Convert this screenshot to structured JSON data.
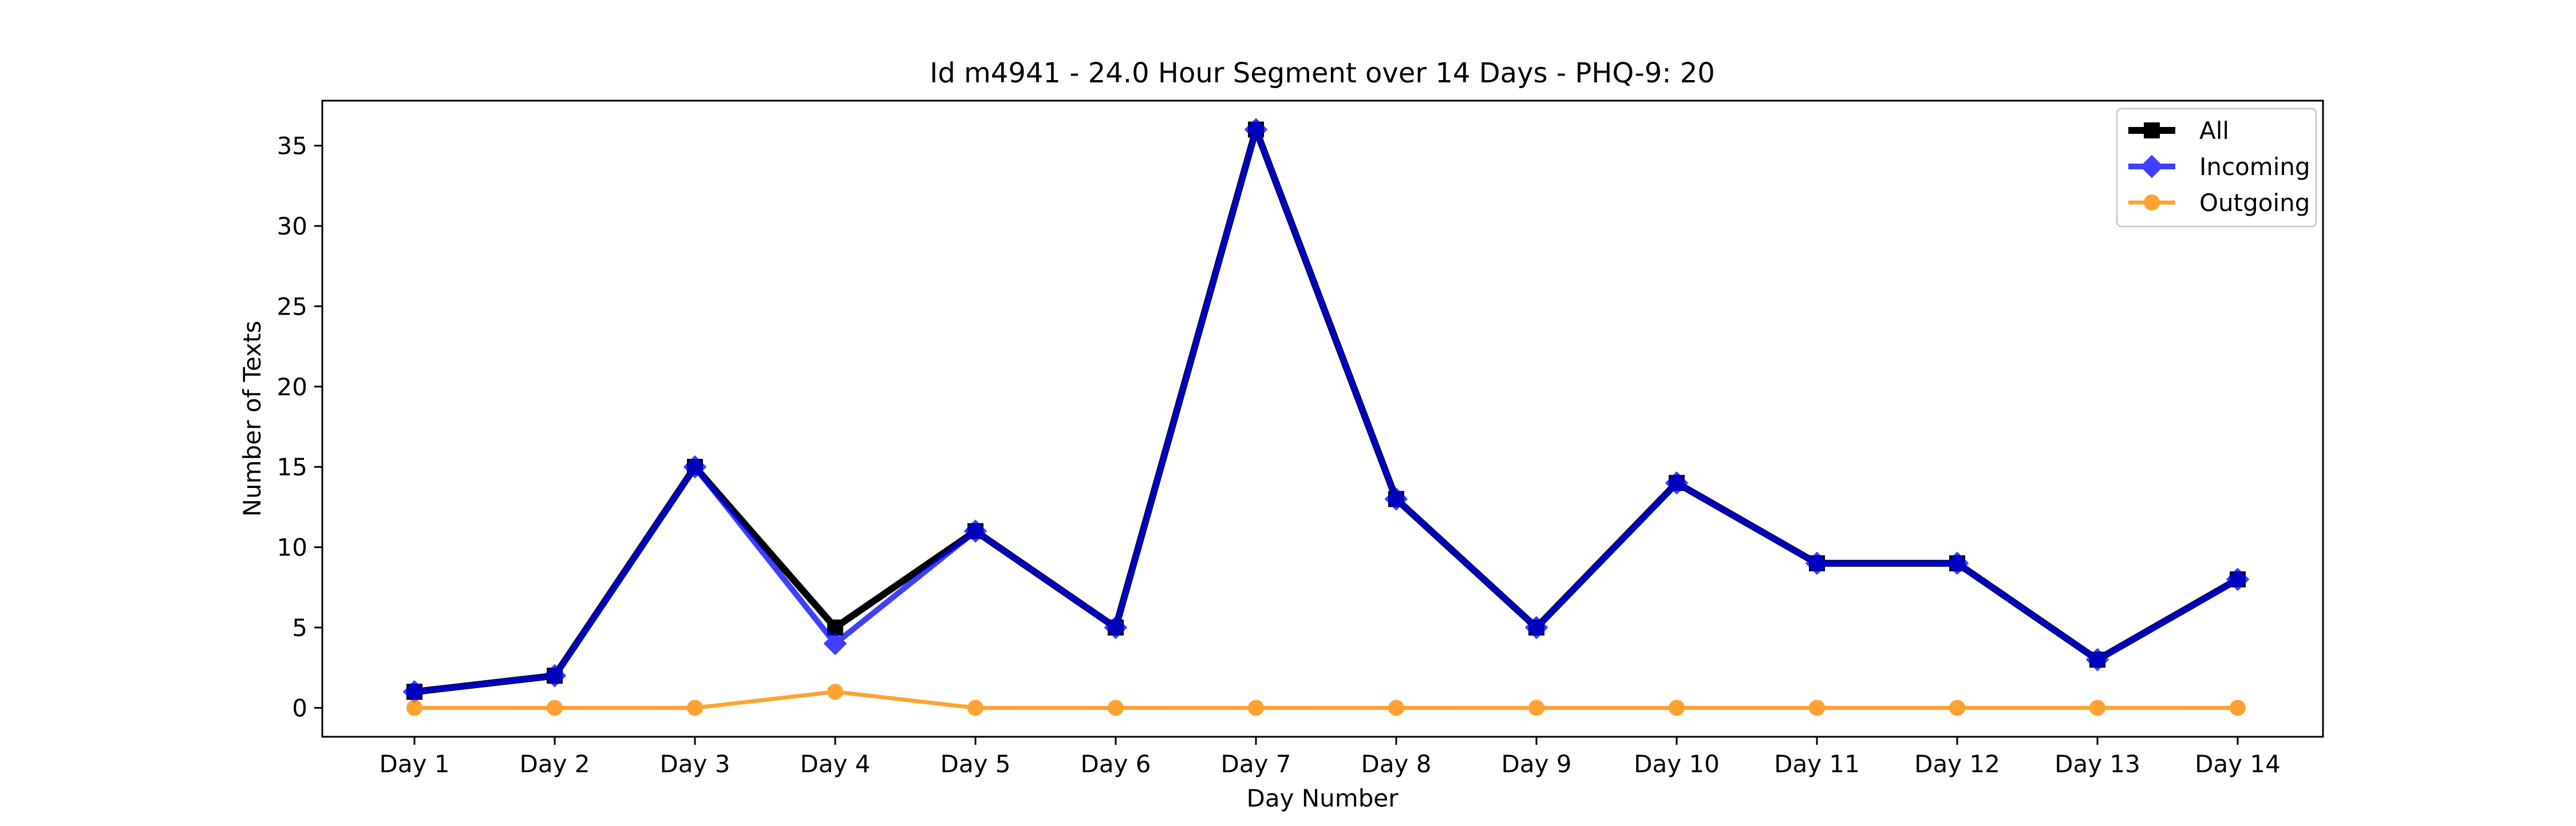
{
  "chart_data": {
    "type": "line",
    "title": "Id m4941 - 24.0 Hour Segment over 14 Days - PHQ-9: 20",
    "xlabel": "Day Number",
    "ylabel": "Number of Texts",
    "categories": [
      "Day 1",
      "Day 2",
      "Day 3",
      "Day 4",
      "Day 5",
      "Day 6",
      "Day 7",
      "Day 8",
      "Day 9",
      "Day 10",
      "Day 11",
      "Day 12",
      "Day 13",
      "Day 14"
    ],
    "ylim": [
      -1.8,
      37.8
    ],
    "yticks": [
      0,
      5,
      10,
      15,
      20,
      25,
      30,
      35
    ],
    "grid": false,
    "legend_position": "top-right",
    "series": [
      {
        "name": "All",
        "color": "#000000",
        "marker": "square",
        "values": [
          1,
          2,
          15,
          5,
          11,
          5,
          36,
          13,
          5,
          14,
          9,
          9,
          3,
          8
        ]
      },
      {
        "name": "Incoming",
        "color": "#0000ff",
        "marker": "diamond",
        "values": [
          1,
          2,
          15,
          4,
          11,
          5,
          36,
          13,
          5,
          14,
          9,
          9,
          3,
          8
        ]
      },
      {
        "name": "Outgoing",
        "color": "#ff8c00",
        "marker": "circle",
        "values": [
          0,
          0,
          0,
          1,
          0,
          0,
          0,
          0,
          0,
          0,
          0,
          0,
          0,
          0
        ]
      }
    ]
  }
}
